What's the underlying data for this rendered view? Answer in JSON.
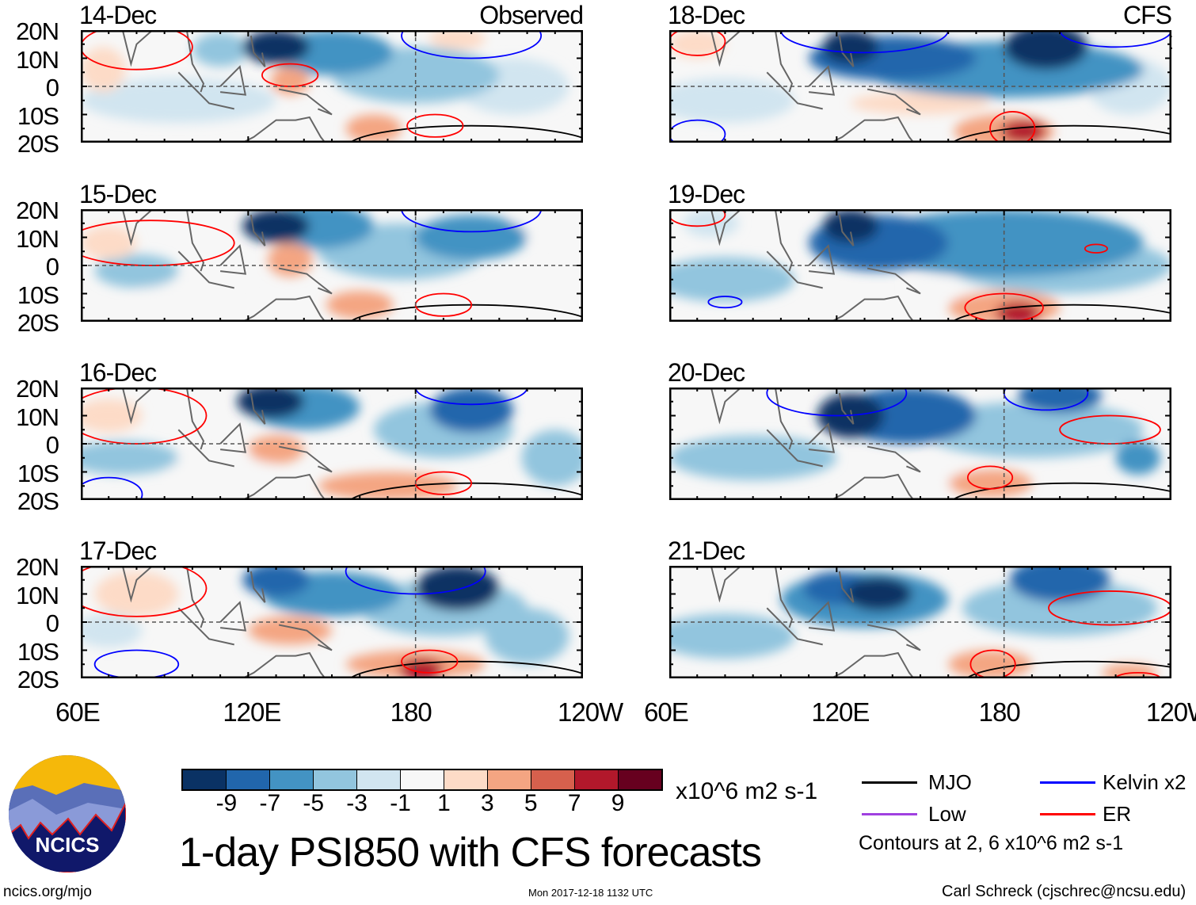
{
  "figure_title": "1-day PSI850 with CFS forecasts",
  "observed_label": "Observed",
  "forecast_label": "CFS Forecast",
  "lat_labels": [
    "20N",
    "10N",
    "0",
    "10S",
    "20S"
  ],
  "lon_labels": [
    "60E",
    "120E",
    "180",
    "120W"
  ],
  "colorbar": {
    "labels": [
      "-9",
      "-7",
      "-5",
      "-3",
      "-1",
      "1",
      "3",
      "5",
      "7",
      "9"
    ],
    "units": "x10^6 m2 s-1",
    "colors": [
      "#0a3264",
      "#2166ac",
      "#4393c3",
      "#92c5de",
      "#d1e5f0",
      "#f7f7f7",
      "#fddbc7",
      "#f4a582",
      "#d6604d",
      "#b2182b",
      "#67001f"
    ]
  },
  "legend": {
    "items": [
      {
        "label": "MJO",
        "color": "#000000"
      },
      {
        "label": "Kelvin x2",
        "color": "#0000ff"
      },
      {
        "label": "Low",
        "color": "#a040e0"
      },
      {
        "label": "ER",
        "color": "#ff0000"
      }
    ],
    "contour_note": "Contours at 2, 6 x10^6 m2 s-1"
  },
  "footer": {
    "url": "ncics.org/mjo",
    "timestamp": "Mon 2017-12-18 1132 UTC",
    "credit": "Carl Schreck (cjschrec@ncsu.edu)",
    "logo_text": "NCICS"
  },
  "chart_data": {
    "type": "heatmap",
    "lon_range": [
      60,
      240
    ],
    "lat_range": [
      -20,
      20
    ],
    "panels": [
      {
        "date": "14-Dec",
        "kind": "observed",
        "blobs": [
          [
            130,
            14,
            12,
            6,
            -9
          ],
          [
            150,
            12,
            22,
            8,
            -5
          ],
          [
            180,
            4,
            30,
            10,
            -3
          ],
          [
            95,
            -5,
            35,
            8,
            -1
          ],
          [
            135,
            2,
            7,
            5,
            5
          ],
          [
            165,
            -15,
            10,
            5,
            5
          ],
          [
            195,
            17,
            10,
            4,
            3
          ],
          [
            68,
            6,
            8,
            8,
            3
          ],
          [
            110,
            13,
            10,
            6,
            -3
          ],
          [
            215,
            0,
            20,
            10,
            -1
          ]
        ],
        "contours": [
          [
            "MJO",
            200,
            -22,
            45,
            8
          ],
          [
            "ER",
            135,
            4,
            10,
            4
          ],
          [
            "ER",
            187,
            -14,
            10,
            4
          ],
          [
            "Kelvin",
            200,
            18,
            25,
            8
          ],
          [
            "ER",
            80,
            14,
            20,
            8
          ]
        ]
      },
      {
        "date": "15-Dec",
        "kind": "observed",
        "blobs": [
          [
            130,
            14,
            12,
            6,
            -9
          ],
          [
            145,
            14,
            20,
            8,
            -5
          ],
          [
            200,
            10,
            20,
            8,
            -5
          ],
          [
            175,
            5,
            30,
            10,
            -3
          ],
          [
            80,
            -2,
            15,
            6,
            -3
          ],
          [
            135,
            2,
            8,
            6,
            5
          ],
          [
            160,
            -14,
            12,
            5,
            5
          ],
          [
            225,
            14,
            12,
            5,
            1
          ],
          [
            70,
            8,
            10,
            6,
            3
          ],
          [
            100,
            -10,
            20,
            5,
            1
          ]
        ],
        "contours": [
          [
            "MJO",
            200,
            -22,
            45,
            8
          ],
          [
            "ER",
            85,
            8,
            30,
            8
          ],
          [
            "ER",
            190,
            -14,
            10,
            4
          ],
          [
            "Kelvin",
            200,
            20,
            25,
            8
          ]
        ]
      },
      {
        "date": "16-Dec",
        "kind": "observed",
        "blobs": [
          [
            128,
            15,
            12,
            6,
            -9
          ],
          [
            140,
            13,
            20,
            8,
            -5
          ],
          [
            200,
            12,
            15,
            8,
            -7
          ],
          [
            190,
            5,
            25,
            10,
            -3
          ],
          [
            75,
            -5,
            20,
            6,
            -3
          ],
          [
            130,
            -2,
            10,
            5,
            5
          ],
          [
            170,
            -15,
            25,
            5,
            5
          ],
          [
            70,
            10,
            12,
            6,
            3
          ],
          [
            110,
            -8,
            20,
            5,
            1
          ],
          [
            230,
            -5,
            12,
            10,
            -3
          ]
        ],
        "contours": [
          [
            "MJO",
            200,
            -22,
            45,
            8
          ],
          [
            "ER",
            80,
            10,
            25,
            10
          ],
          [
            "ER",
            190,
            -14,
            10,
            4
          ],
          [
            "Kelvin",
            200,
            20,
            20,
            6
          ],
          [
            "Kelvin",
            70,
            -18,
            12,
            6
          ]
        ]
      },
      {
        "date": "17-Dec",
        "kind": "observed",
        "blobs": [
          [
            130,
            15,
            12,
            6,
            -7
          ],
          [
            150,
            10,
            25,
            8,
            -5
          ],
          [
            195,
            12,
            15,
            8,
            -9
          ],
          [
            190,
            5,
            30,
            10,
            -3
          ],
          [
            80,
            10,
            15,
            8,
            3
          ],
          [
            135,
            -3,
            15,
            5,
            5
          ],
          [
            180,
            -15,
            25,
            5,
            5
          ],
          [
            182,
            -17,
            8,
            4,
            9
          ],
          [
            70,
            -3,
            12,
            6,
            -1
          ],
          [
            220,
            -5,
            15,
            10,
            -3
          ]
        ],
        "contours": [
          [
            "MJO",
            200,
            -22,
            45,
            8
          ],
          [
            "ER",
            80,
            12,
            25,
            10
          ],
          [
            "ER",
            185,
            -14,
            10,
            4
          ],
          [
            "Kelvin",
            180,
            18,
            25,
            8
          ],
          [
            "Kelvin",
            80,
            -15,
            15,
            5
          ]
        ]
      },
      {
        "date": "18-Dec",
        "kind": "forecast",
        "blobs": [
          [
            125,
            14,
            10,
            6,
            -9
          ],
          [
            140,
            10,
            30,
            8,
            -7
          ],
          [
            195,
            14,
            15,
            8,
            -9
          ],
          [
            180,
            6,
            50,
            10,
            -5
          ],
          [
            80,
            -5,
            25,
            8,
            -1
          ],
          [
            150,
            -6,
            25,
            4,
            3
          ],
          [
            180,
            -16,
            18,
            6,
            5
          ],
          [
            187,
            -16,
            8,
            4,
            9
          ],
          [
            70,
            15,
            10,
            5,
            3
          ],
          [
            225,
            0,
            15,
            10,
            -1
          ]
        ],
        "contours": [
          [
            "MJO",
            205,
            -22,
            45,
            8
          ],
          [
            "ER",
            183,
            -15,
            8,
            6
          ],
          [
            "ER",
            70,
            16,
            10,
            5
          ],
          [
            "Kelvin",
            130,
            20,
            30,
            8
          ],
          [
            "Kelvin",
            220,
            20,
            20,
            6
          ],
          [
            "Kelvin",
            70,
            -17,
            10,
            5
          ]
        ]
      },
      {
        "date": "19-Dec",
        "kind": "forecast",
        "blobs": [
          [
            125,
            14,
            10,
            6,
            -9
          ],
          [
            135,
            8,
            25,
            10,
            -7
          ],
          [
            180,
            8,
            50,
            12,
            -5
          ],
          [
            200,
            0,
            40,
            10,
            -3
          ],
          [
            80,
            -5,
            25,
            8,
            -3
          ],
          [
            180,
            -15,
            20,
            6,
            5
          ],
          [
            185,
            -17,
            8,
            4,
            9
          ],
          [
            75,
            15,
            10,
            5,
            -1
          ],
          [
            160,
            -8,
            15,
            4,
            1
          ]
        ],
        "contours": [
          [
            "MJO",
            205,
            -22,
            45,
            8
          ],
          [
            "ER",
            180,
            -15,
            14,
            5
          ],
          [
            "ER",
            213,
            6,
            4,
            1.5
          ],
          [
            "ER",
            70,
            18,
            10,
            4
          ],
          [
            "Kelvin",
            80,
            -13,
            6,
            2
          ]
        ]
      },
      {
        "date": "20-Dec",
        "kind": "forecast",
        "blobs": [
          [
            125,
            10,
            12,
            8,
            -9
          ],
          [
            145,
            10,
            25,
            10,
            -7
          ],
          [
            200,
            17,
            15,
            6,
            -7
          ],
          [
            190,
            5,
            40,
            10,
            -3
          ],
          [
            90,
            -5,
            30,
            8,
            -3
          ],
          [
            175,
            -14,
            15,
            5,
            5
          ],
          [
            228,
            -5,
            8,
            6,
            -5
          ],
          [
            70,
            12,
            8,
            6,
            1
          ],
          [
            160,
            -12,
            20,
            5,
            1
          ]
        ],
        "contours": [
          [
            "MJO",
            205,
            -22,
            45,
            8
          ],
          [
            "ER",
            175,
            -12,
            8,
            4
          ],
          [
            "ER",
            218,
            5,
            18,
            5
          ],
          [
            "Kelvin",
            120,
            18,
            25,
            8
          ],
          [
            "Kelvin",
            195,
            18,
            15,
            6
          ]
        ]
      },
      {
        "date": "21-Dec",
        "kind": "forecast",
        "blobs": [
          [
            120,
            12,
            12,
            6,
            -7
          ],
          [
            135,
            10,
            12,
            6,
            -9
          ],
          [
            130,
            8,
            30,
            10,
            -5
          ],
          [
            200,
            15,
            18,
            8,
            -7
          ],
          [
            200,
            5,
            35,
            10,
            -3
          ],
          [
            80,
            -5,
            25,
            8,
            -3
          ],
          [
            175,
            -15,
            15,
            5,
            5
          ],
          [
            225,
            -18,
            10,
            3,
            5
          ],
          [
            70,
            15,
            8,
            5,
            1
          ]
        ],
        "contours": [
          [
            "MJO",
            210,
            -22,
            45,
            8
          ],
          [
            "ER",
            176,
            -15,
            8,
            5
          ],
          [
            "ER",
            218,
            5,
            22,
            6
          ],
          [
            "ER",
            228,
            -20,
            8,
            2
          ]
        ]
      }
    ]
  }
}
